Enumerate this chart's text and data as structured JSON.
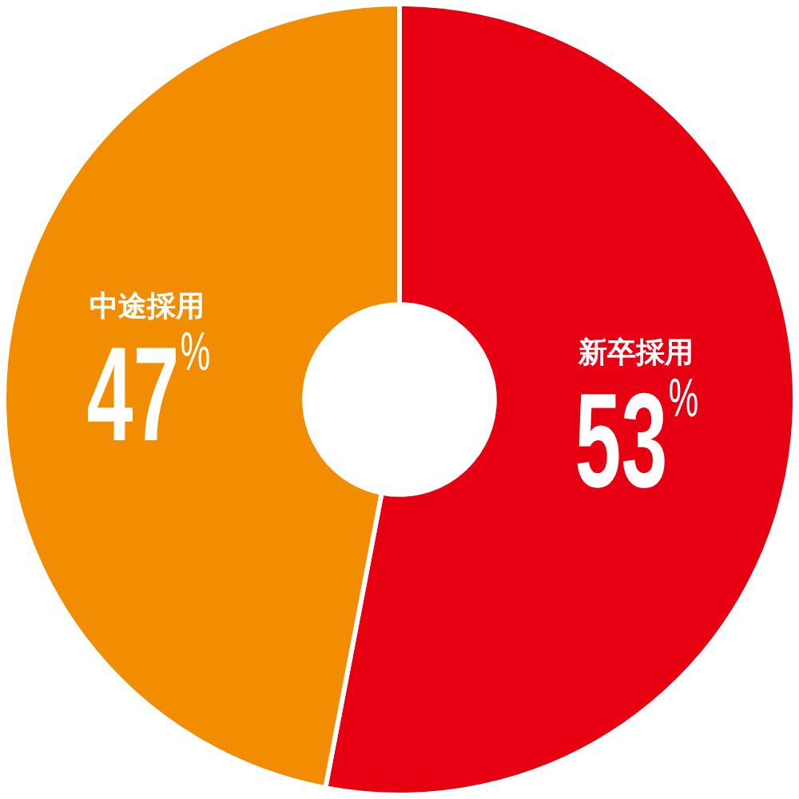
{
  "chart_data": {
    "type": "donut",
    "categories": [
      "新卒採用",
      "中途採用"
    ],
    "values": [
      53,
      47
    ],
    "colors": [
      "#e60012",
      "#f28c00"
    ],
    "value_labels": [
      "53%",
      "47%"
    ],
    "legend": false
  }
}
